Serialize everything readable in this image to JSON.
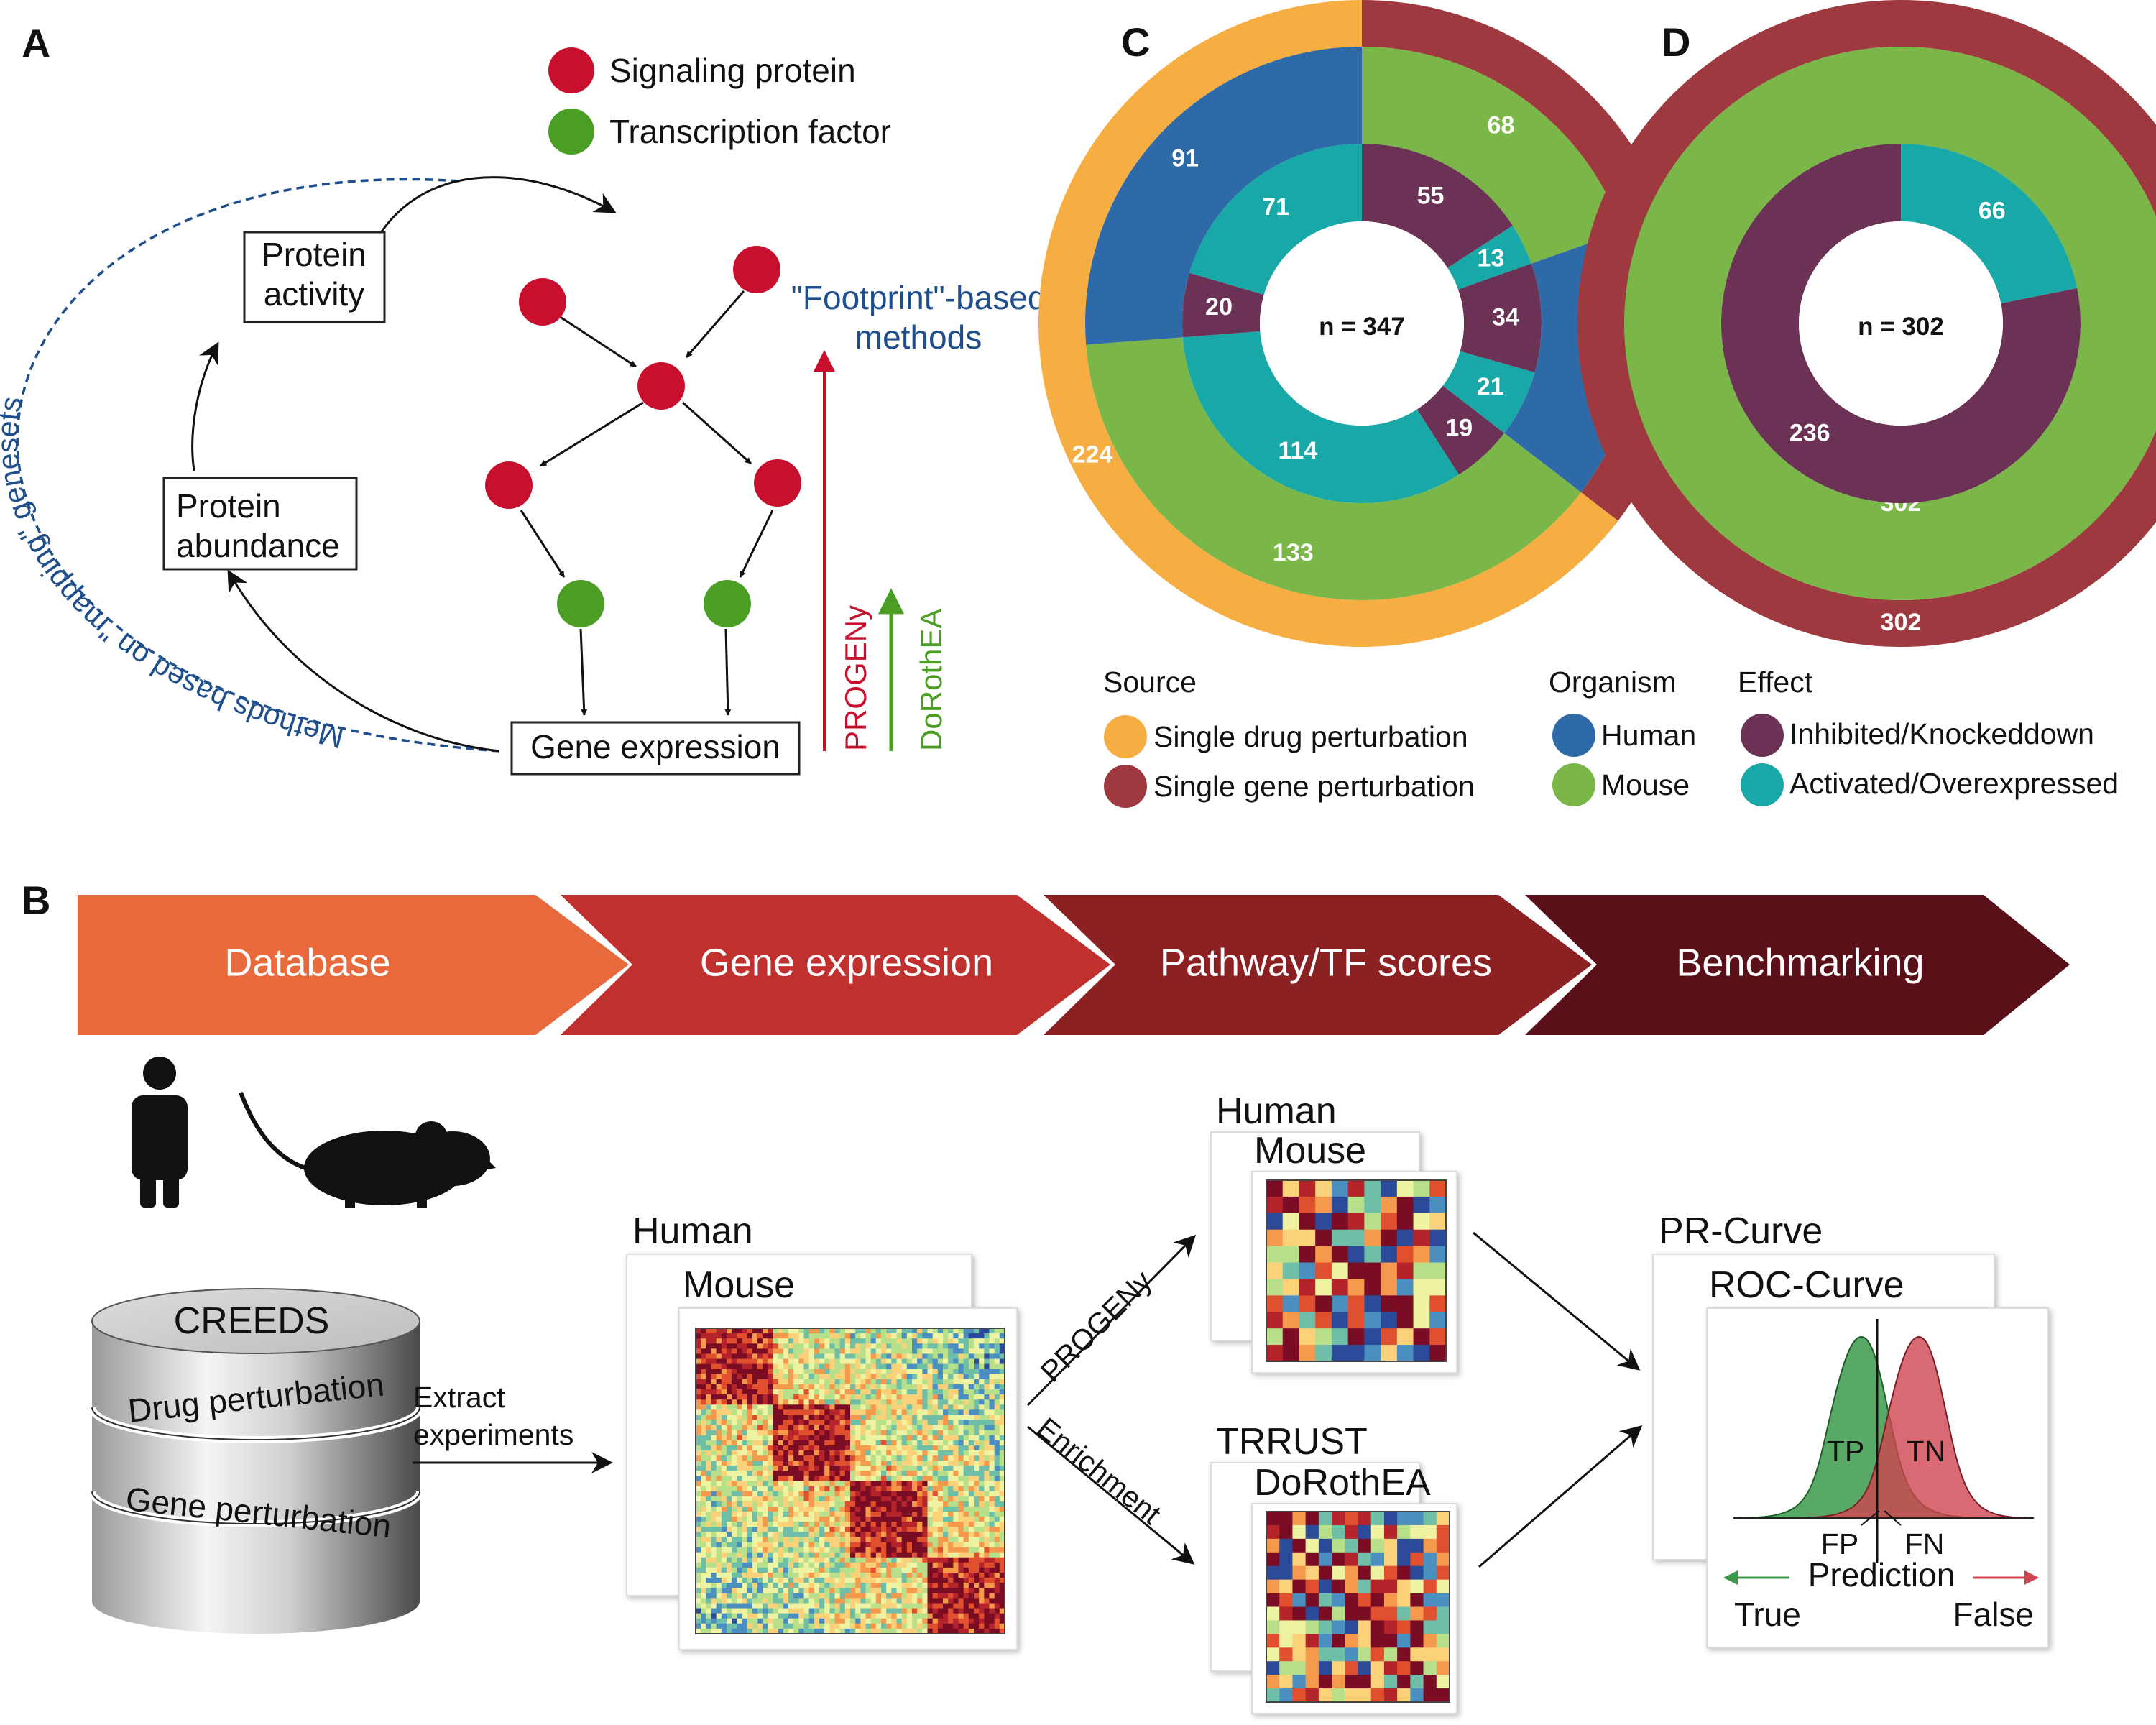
{
  "panels": {
    "a": "A",
    "b": "B",
    "c": "C",
    "d": "D"
  },
  "panelA": {
    "legend": {
      "signaling": "Signaling protein",
      "tf": "Transcription factor"
    },
    "boxes": {
      "activity_1": "Protein",
      "activity_2": "activity",
      "abundance_1": "Protein",
      "abundance_2": "abundance",
      "gene": "Gene expression"
    },
    "footprint_1": "\"Footprint\"-based",
    "footprint_2": "methods",
    "mapping": "Methods based on \"mapping\" genesets",
    "progeny": "PROGENy",
    "dorothea": "DoRothEA",
    "colors": {
      "signaling": "#c8102e",
      "tf": "#4a9e23",
      "blue": "#1f4e8c",
      "progeny": "#c8102e",
      "dorothea": "#4a9e23"
    }
  },
  "panelC": {
    "center": "n = 347",
    "rings": {
      "outer": [
        {
          "label": "123",
          "value": 123,
          "color": "#9e3a3f"
        },
        {
          "label": "224",
          "value": 224,
          "color": "#f6ae42"
        }
      ],
      "middle": [
        {
          "label": "68",
          "value": 68,
          "color": "#7ab648"
        },
        {
          "label": "55",
          "value": 55,
          "color": "#2e6aa8"
        },
        {
          "label": "133",
          "value": 133,
          "color": "#7ab648"
        },
        {
          "label": "91",
          "value": 91,
          "color": "#2e6aa8"
        }
      ],
      "inner": [
        {
          "label": "55",
          "value": 55,
          "color": "#6b3256"
        },
        {
          "label": "13",
          "value": 13,
          "color": "#19a8a8"
        },
        {
          "label": "34",
          "value": 34,
          "color": "#6b3256"
        },
        {
          "label": "21",
          "value": 21,
          "color": "#19a8a8"
        },
        {
          "label": "19",
          "value": 19,
          "color": "#6b3256"
        },
        {
          "label": "114",
          "value": 114,
          "color": "#19a8a8"
        },
        {
          "label": "20",
          "value": 20,
          "color": "#6b3256"
        },
        {
          "label": "71",
          "value": 71,
          "color": "#19a8a8"
        }
      ]
    }
  },
  "panelD": {
    "center": "n = 302",
    "rings": {
      "outer": [
        {
          "label": "302",
          "value": 302,
          "color": "#9e3a3f"
        }
      ],
      "middle": [
        {
          "label": "302",
          "value": 302,
          "color": "#7ab648"
        }
      ],
      "inner": [
        {
          "label": "66",
          "value": 66,
          "color": "#19a8a8"
        },
        {
          "label": "236",
          "value": 236,
          "color": "#6b3256"
        }
      ]
    }
  },
  "legendCD": {
    "source": {
      "title": "Source",
      "items": [
        {
          "label": "Single drug perturbation",
          "color": "#f6ae42"
        },
        {
          "label": "Single gene perturbation",
          "color": "#9e3a3f"
        }
      ]
    },
    "organism": {
      "title": "Organism",
      "items": [
        {
          "label": "Human",
          "color": "#2e6aa8"
        },
        {
          "label": "Mouse",
          "color": "#7ab648"
        }
      ]
    },
    "effect": {
      "title": "Effect",
      "items": [
        {
          "label": "Inhibited/Knockeddown",
          "color": "#6b3256"
        },
        {
          "label": "Activated/Overexpressed",
          "color": "#19a8a8"
        }
      ]
    }
  },
  "banner": [
    {
      "label": "Database",
      "color": "#e8693c"
    },
    {
      "label": "Gene expression",
      "color": "#c0302e"
    },
    {
      "label": "Pathway/TF scores",
      "color": "#8c2124"
    },
    {
      "label": "Benchmarking",
      "color": "#5a1019"
    }
  ],
  "panelB": {
    "db": {
      "title": "CREEDS",
      "drug": "Drug perturbation",
      "gene": "Gene perturbation"
    },
    "extract_1": "Extract",
    "extract_2": "experiments",
    "matrix": {
      "human": "Human",
      "mouse": "Mouse"
    },
    "progeny": "PROGENy",
    "enrichment": "Enrichment",
    "pathway": {
      "human": "Human",
      "mouse": "Mouse"
    },
    "tf": {
      "trrust": "TRRUST",
      "dorothea": "DoRothEA"
    },
    "curves": {
      "pr": "PR-Curve",
      "roc": "ROC-Curve",
      "tp": "TP",
      "tn": "TN",
      "fp": "FP",
      "fn": "FN",
      "prediction": "Prediction",
      "true": "True",
      "false": "False"
    }
  }
}
